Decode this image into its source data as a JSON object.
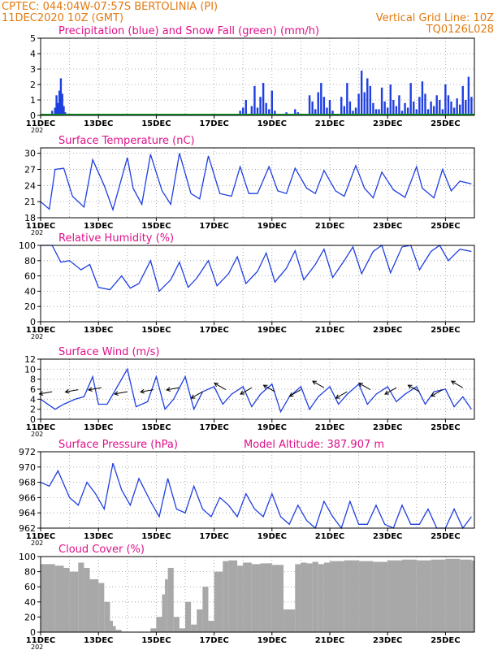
{
  "header": {
    "station": "CPTEC:   044:04W-07:57S   BERTOLINIA (PI)",
    "run": "11DEC2020  10Z (GMT)",
    "grid_note": "Vertical Grid Line: 10Z",
    "code": "TQ0126L028"
  },
  "colors": {
    "orange": "#e07a10",
    "magenta": "#e0108a",
    "blue": "#1f3fe0",
    "green": "#0a9a2a",
    "cloud": "#a8a8a8"
  },
  "x_ticks": [
    "11DEC",
    "13DEC",
    "15DEC",
    "17DEC",
    "19DEC",
    "21DEC",
    "23DEC",
    "25DEC"
  ],
  "year_fragment": "202",
  "chart_data": [
    {
      "type": "bar",
      "title": "Precipitation (blue) and Snow Fall (green) (mm/h)",
      "ylim": [
        0,
        5
      ],
      "yticks": [
        "0",
        "1",
        "2",
        "3",
        "4",
        "5"
      ],
      "x_range_days": [
        0,
        15
      ],
      "series": [
        {
          "name": "Precipitation",
          "x": [
            0.4,
            0.5,
            0.55,
            0.6,
            0.65,
            0.7,
            0.75,
            0.8,
            0.85,
            0.9,
            6.9,
            7.0,
            7.1,
            7.3,
            7.4,
            7.5,
            7.6,
            7.7,
            7.8,
            7.9,
            8.0,
            8.1,
            8.5,
            8.8,
            8.9,
            9.3,
            9.4,
            9.5,
            9.6,
            9.7,
            9.8,
            9.9,
            10.0,
            10.1,
            10.4,
            10.5,
            10.6,
            10.7,
            10.8,
            10.9,
            11.0,
            11.1,
            11.2,
            11.3,
            11.4,
            11.5,
            11.6,
            11.7,
            11.8,
            11.9,
            12.0,
            12.1,
            12.2,
            12.3,
            12.4,
            12.5,
            12.6,
            12.7,
            12.8,
            12.9,
            13.0,
            13.1,
            13.2,
            13.3,
            13.4,
            13.5,
            13.6,
            13.7,
            13.8,
            13.9,
            14.0,
            14.1,
            14.2,
            14.3,
            14.4,
            14.5,
            14.6,
            14.7,
            14.8,
            14.9
          ],
          "values": [
            0.3,
            0.5,
            1.3,
            0.8,
            1.6,
            2.4,
            1.4,
            0.6,
            0.2,
            0.1,
            0.3,
            0.5,
            1.0,
            0.6,
            1.9,
            0.5,
            1.2,
            2.1,
            0.8,
            0.4,
            1.6,
            0.3,
            0.2,
            0.4,
            0.2,
            1.3,
            0.9,
            0.4,
            1.5,
            2.1,
            1.2,
            0.5,
            1.0,
            0.3,
            1.2,
            0.6,
            2.1,
            0.9,
            0.3,
            0.5,
            1.4,
            2.9,
            1.5,
            2.4,
            1.9,
            0.8,
            0.4,
            0.4,
            1.8,
            0.9,
            0.5,
            2.0,
            1.0,
            0.6,
            1.3,
            0.3,
            0.8,
            0.5,
            2.1,
            0.9,
            0.4,
            1.2,
            2.2,
            1.4,
            0.4,
            0.9,
            0.6,
            1.3,
            1.0,
            0.4,
            2.0,
            1.3,
            0.9,
            0.5,
            1.1,
            0.7,
            1.9,
            1.0,
            2.5,
            1.2
          ]
        },
        {
          "name": "Snow Fall",
          "values": [
            0
          ]
        }
      ]
    },
    {
      "type": "line",
      "title": "Surface Temperature (nC)",
      "ylim": [
        18,
        31
      ],
      "yticks": [
        "18",
        "21",
        "24",
        "27",
        "30"
      ],
      "series": [
        {
          "name": "Temperature",
          "x": [
            0,
            0.3,
            0.5,
            0.8,
            1.1,
            1.5,
            1.8,
            2.2,
            2.5,
            3.0,
            3.2,
            3.5,
            3.8,
            4.2,
            4.5,
            4.8,
            5.2,
            5.5,
            5.8,
            6.2,
            6.6,
            6.9,
            7.2,
            7.5,
            7.9,
            8.2,
            8.5,
            8.8,
            9.2,
            9.5,
            9.8,
            10.2,
            10.5,
            10.9,
            11.2,
            11.5,
            11.8,
            12.2,
            12.6,
            13.0,
            13.2,
            13.6,
            13.9,
            14.2,
            14.5,
            14.9
          ],
          "values": [
            21,
            19.6,
            27,
            27.2,
            22,
            20,
            28.8,
            24,
            19.5,
            29.2,
            23.5,
            20.5,
            29.8,
            23,
            20.5,
            30,
            22.5,
            21.5,
            29.5,
            22.5,
            22,
            27.5,
            22.5,
            22.5,
            27.5,
            23,
            22.5,
            27.2,
            23.5,
            22.5,
            26.8,
            23,
            22,
            27.7,
            23.5,
            21.7,
            26.5,
            23.2,
            21.8,
            27.5,
            23.5,
            21.7,
            27,
            23,
            24.8,
            24.3
          ]
        }
      ]
    },
    {
      "type": "line",
      "title": "Relative Humidity (%)",
      "ylim": [
        0,
        100
      ],
      "yticks": [
        "0",
        "20",
        "40",
        "60",
        "80",
        "100"
      ],
      "series": [
        {
          "name": "Relative Humidity",
          "x": [
            0,
            0.4,
            0.7,
            1.0,
            1.4,
            1.7,
            2.0,
            2.4,
            2.8,
            3.1,
            3.4,
            3.8,
            4.1,
            4.5,
            4.8,
            5.1,
            5.4,
            5.8,
            6.1,
            6.5,
            6.8,
            7.1,
            7.5,
            7.8,
            8.1,
            8.5,
            8.8,
            9.1,
            9.5,
            9.8,
            10.1,
            10.5,
            10.8,
            11.1,
            11.5,
            11.8,
            12.1,
            12.5,
            12.8,
            13.1,
            13.5,
            13.8,
            14.1,
            14.5,
            14.9
          ],
          "values": [
            100,
            100,
            78,
            80,
            68,
            75,
            45,
            42,
            60,
            44,
            50,
            80,
            40,
            55,
            78,
            45,
            57,
            80,
            47,
            63,
            85,
            50,
            66,
            90,
            52,
            70,
            93,
            55,
            75,
            95,
            58,
            80,
            98,
            63,
            92,
            100,
            64,
            98,
            100,
            68,
            92,
            100,
            80,
            95,
            92
          ]
        }
      ]
    },
    {
      "type": "line",
      "title": "Surface Wind (m/s)",
      "ylim": [
        0,
        12
      ],
      "yticks": [
        "0",
        "2",
        "4",
        "6",
        "8",
        "10",
        "12"
      ],
      "series": [
        {
          "name": "Wind speed",
          "x": [
            0,
            0.5,
            0.8,
            1.2,
            1.5,
            1.8,
            2.0,
            2.3,
            2.6,
            3.0,
            3.3,
            3.7,
            4.0,
            4.3,
            4.6,
            5.0,
            5.3,
            5.6,
            6.0,
            6.3,
            6.6,
            7.0,
            7.3,
            7.6,
            8.0,
            8.3,
            8.6,
            9.0,
            9.3,
            9.6,
            10.0,
            10.3,
            10.6,
            11.0,
            11.3,
            11.6,
            12.0,
            12.3,
            12.6,
            13.0,
            13.3,
            13.6,
            14.0,
            14.3,
            14.6,
            14.9
          ],
          "values": [
            4,
            2,
            3,
            4,
            4.5,
            8.5,
            3,
            3,
            6,
            10,
            2.5,
            3.5,
            8.5,
            2,
            4,
            8.5,
            2,
            5.5,
            6.5,
            3,
            5,
            6.5,
            2.5,
            5,
            7,
            1.5,
            4.5,
            6.5,
            2,
            4.5,
            6.5,
            3,
            5,
            7,
            3,
            5,
            6.5,
            3.5,
            5,
            6.5,
            3,
            5.5,
            6,
            2.5,
            4.5,
            2
          ]
        }
      ],
      "arrows_note": "wind direction vectors"
    },
    {
      "type": "line",
      "title": "Surface Pressure (hPa)",
      "annotation": "Model Altitude: 387.907  m",
      "ylim": [
        962,
        972
      ],
      "yticks": [
        "962",
        "964",
        "966",
        "968",
        "970",
        "972"
      ],
      "series": [
        {
          "name": "Pressure",
          "x": [
            0,
            0.3,
            0.6,
            1.0,
            1.3,
            1.6,
            1.9,
            2.2,
            2.5,
            2.8,
            3.1,
            3.4,
            3.8,
            4.1,
            4.4,
            4.7,
            5.0,
            5.3,
            5.6,
            5.9,
            6.2,
            6.5,
            6.8,
            7.1,
            7.4,
            7.7,
            8.0,
            8.3,
            8.6,
            8.9,
            9.2,
            9.5,
            9.8,
            10.1,
            10.4,
            10.7,
            11.0,
            11.3,
            11.6,
            11.9,
            12.2,
            12.5,
            12.8,
            13.1,
            13.4,
            13.7,
            14.0,
            14.3,
            14.6,
            14.9
          ],
          "values": [
            968,
            967.5,
            969.5,
            966,
            965,
            968,
            966.5,
            964.5,
            970.5,
            967,
            965,
            968.5,
            965.5,
            963.5,
            968.5,
            964.5,
            964,
            967.5,
            964.5,
            963.5,
            966,
            965,
            963.5,
            966.5,
            964.5,
            963.5,
            966.5,
            963.5,
            962.5,
            965,
            963,
            962,
            965.5,
            963.5,
            962,
            965.5,
            962.5,
            962.5,
            965,
            962.5,
            962,
            965,
            962.5,
            962.5,
            964.5,
            962,
            962,
            964.5,
            962,
            963.5
          ]
        }
      ]
    },
    {
      "type": "bar",
      "title": "Cloud Cover (%)",
      "ylim": [
        0,
        100
      ],
      "yticks": [
        "0",
        "20",
        "40",
        "60",
        "80",
        "100"
      ],
      "series": [
        {
          "name": "Cloud Cover",
          "x": [
            0,
            0.5,
            0.8,
            1.0,
            1.3,
            1.5,
            1.7,
            2.0,
            2.2,
            2.4,
            2.5,
            2.6,
            2.8,
            3.0,
            3.3,
            3.6,
            3.8,
            4.0,
            4.2,
            4.3,
            4.4,
            4.6,
            4.8,
            5.0,
            5.2,
            5.4,
            5.6,
            5.8,
            6.0,
            6.3,
            6.5,
            6.8,
            7.0,
            7.3,
            7.6,
            8.0,
            8.4,
            8.8,
            9.0,
            9.2,
            9.4,
            9.6,
            9.8,
            10.0,
            10.5,
            11.0,
            11.5,
            12.0,
            12.5,
            13.0,
            13.5,
            14.0,
            14.5,
            14.9
          ],
          "values": [
            90,
            88,
            85,
            80,
            92,
            85,
            70,
            65,
            40,
            15,
            8,
            3,
            0,
            0,
            0,
            0,
            5,
            20,
            50,
            70,
            85,
            20,
            5,
            40,
            10,
            30,
            60,
            15,
            80,
            94,
            95,
            88,
            92,
            90,
            91,
            89,
            30,
            90,
            92,
            91,
            93,
            90,
            92,
            94,
            95,
            94,
            93,
            95,
            96,
            95,
            96,
            97,
            96,
            95
          ]
        }
      ]
    }
  ]
}
